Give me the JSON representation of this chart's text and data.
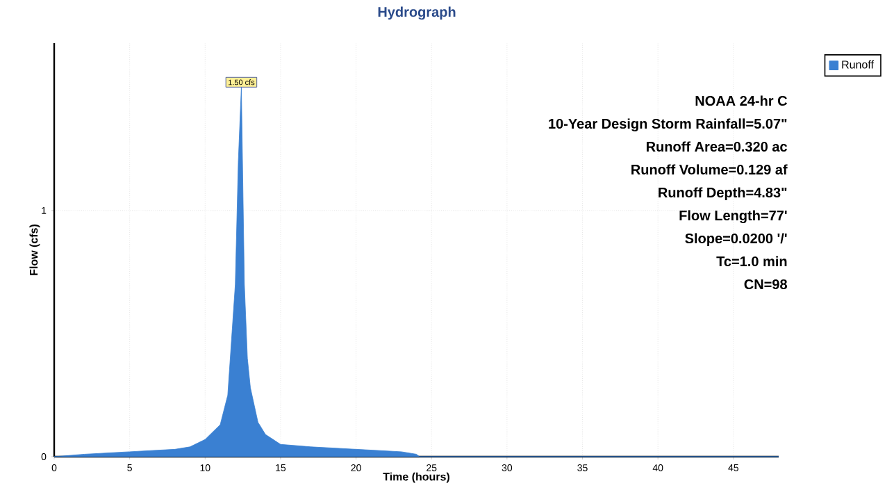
{
  "chart_data": {
    "type": "area",
    "title": "Hydrograph",
    "xlabel": "Time  (hours)",
    "ylabel": "Flow  (cfs)",
    "x": [
      0,
      2,
      5,
      8,
      9,
      10,
      11,
      11.5,
      12,
      12.2,
      12.4,
      12.6,
      12.8,
      13,
      13.5,
      14,
      15,
      17,
      20,
      23,
      24,
      24.2,
      30,
      40,
      48
    ],
    "series": [
      {
        "name": "Runoff",
        "color": "#3a80d2",
        "values": [
          0,
          0.01,
          0.02,
          0.03,
          0.04,
          0.07,
          0.13,
          0.25,
          0.7,
          1.2,
          1.5,
          0.7,
          0.4,
          0.28,
          0.14,
          0.09,
          0.05,
          0.04,
          0.03,
          0.02,
          0.01,
          0,
          0,
          0,
          0
        ]
      }
    ],
    "xlim": [
      0,
      48
    ],
    "ylim": [
      0,
      1.68
    ],
    "xticks": [
      0,
      5,
      10,
      15,
      20,
      25,
      30,
      35,
      40,
      45
    ],
    "yticks": [
      0,
      1
    ],
    "grid": true,
    "legend": "top right",
    "annotations": [
      {
        "text": "1.50 cfs",
        "x": 12.4,
        "y": 1.5
      },
      "NOAA 24-hr C",
      "10-Year Design Storm Rainfall=5.07\"",
      "Runoff Area=0.320 ac",
      "Runoff Volume=0.129 af",
      "Runoff Depth=4.83\"",
      "Flow Length=77'",
      "Slope=0.0200 '/'",
      "Tc=1.0 min",
      "CN=98"
    ]
  }
}
